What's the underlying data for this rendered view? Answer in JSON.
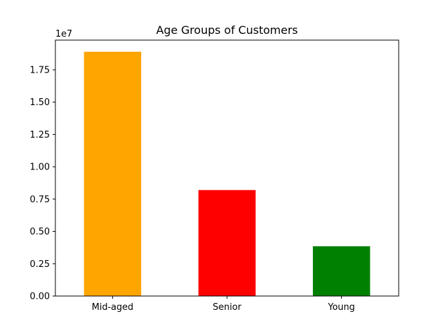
{
  "chart_data": {
    "type": "bar",
    "title": "Age Groups of Customers",
    "xlabel": "",
    "ylabel": "",
    "categories": [
      "Mid-aged",
      "Senior",
      "Young"
    ],
    "values": [
      18900000,
      8200000,
      3850000
    ],
    "colors": [
      "#ffa500",
      "#ff0000",
      "#008000"
    ],
    "ylim": [
      0,
      19800000
    ],
    "y_ticks": [
      0,
      2500000,
      5000000,
      7500000,
      10000000,
      12500000,
      15000000,
      17500000
    ],
    "y_tick_labels": [
      "0.00",
      "0.25",
      "0.50",
      "0.75",
      "1.00",
      "1.25",
      "1.50",
      "1.75"
    ],
    "y_offset_label": "1e7",
    "grid": false,
    "legend": false
  }
}
